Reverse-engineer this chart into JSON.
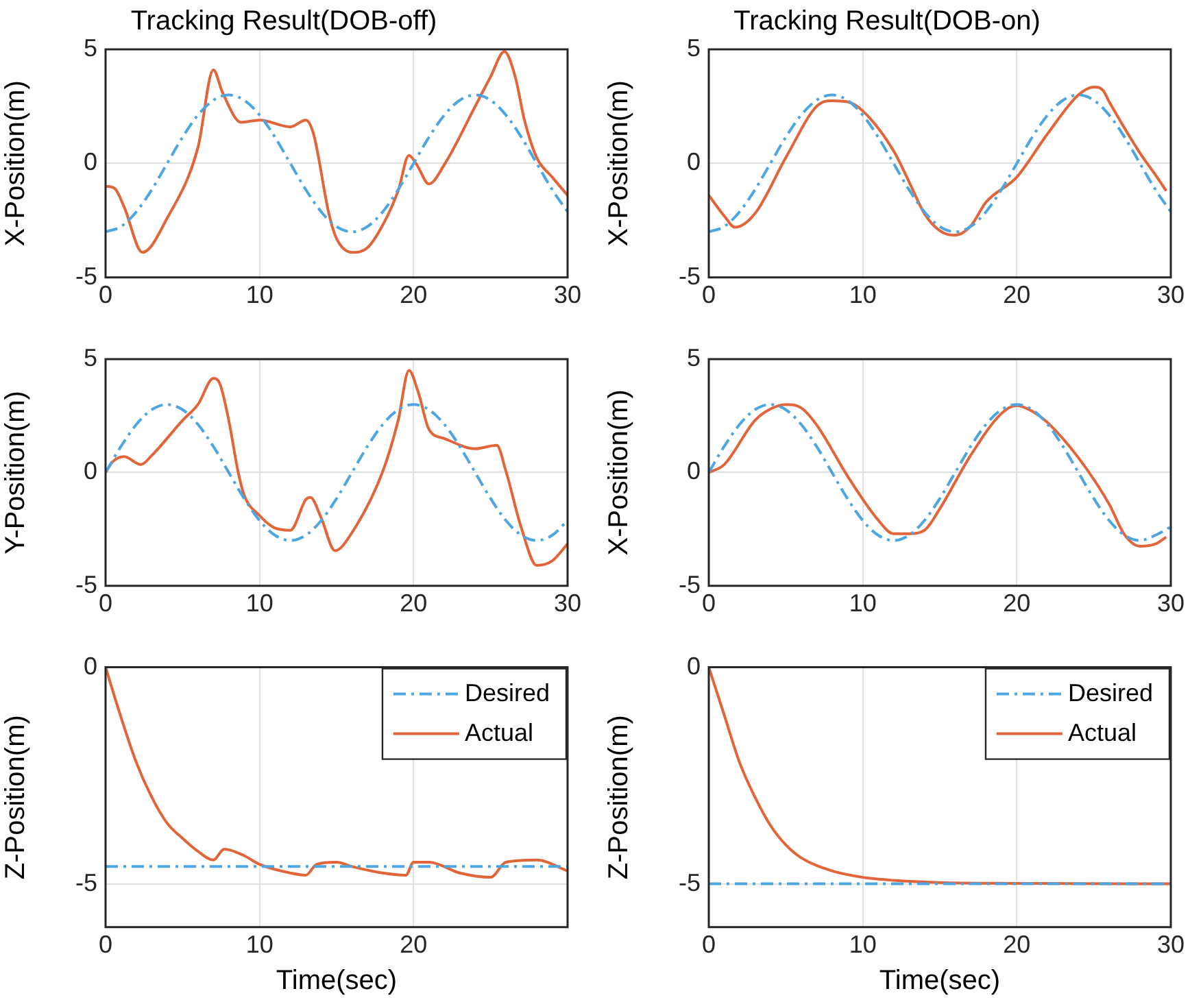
{
  "chart_data": [
    {
      "type": "line",
      "title": "Tracking Result(DOB-off)",
      "ylabel": "X-Position(m)",
      "xlim": [
        0,
        30
      ],
      "xticks": [
        0,
        10,
        20,
        30
      ],
      "ylim": [
        -5,
        5
      ],
      "yticks": [
        -5,
        0,
        5
      ],
      "grid": true,
      "legend": false,
      "series": [
        {
          "color": "#4da6e0",
          "line_style": "dashed",
          "x": [
            0,
            1,
            2,
            3,
            4,
            5,
            6,
            7,
            8,
            9,
            10,
            11,
            12,
            13,
            14,
            15,
            16,
            17,
            18,
            19,
            20,
            21,
            22,
            23,
            24,
            25,
            26,
            27,
            28,
            29,
            30
          ],
          "values": [
            -3,
            -2.77,
            -2.12,
            -1.15,
            0,
            1.15,
            2.12,
            2.77,
            3,
            2.77,
            2.12,
            1.15,
            0,
            -1.15,
            -2.12,
            -2.77,
            -3,
            -2.77,
            -2.12,
            -1.15,
            0,
            1.15,
            2.12,
            2.77,
            3,
            2.77,
            2.12,
            1.15,
            0,
            -1.15,
            -2.12
          ]
        },
        {
          "color": "#e2653a",
          "line_style": "solid",
          "x": [
            0,
            0.6,
            1.2,
            2.4,
            4,
            6,
            7,
            7.6,
            8.8,
            10,
            12,
            13,
            13.5,
            14.5,
            15,
            16,
            17,
            18,
            19,
            19.7,
            20.2,
            21,
            22,
            24,
            25,
            25.9,
            26.6,
            27.2,
            28,
            29,
            30
          ],
          "values": [
            -1,
            -1.1,
            -1.9,
            -3.9,
            -2.4,
            0.7,
            4.1,
            3.1,
            1.8,
            1.9,
            1.6,
            1.9,
            1.3,
            -2.2,
            -3.3,
            -3.9,
            -3.7,
            -2.7,
            -1.2,
            0.35,
            -0.05,
            -0.9,
            -0.05,
            2.5,
            3.8,
            4.9,
            3.8,
            1.9,
            0.25,
            -0.6,
            -1.4
          ]
        }
      ]
    },
    {
      "type": "line",
      "title": "Tracking Result(DOB-on)",
      "ylabel": "X-Position(m)",
      "xlim": [
        0,
        30
      ],
      "xticks": [
        0,
        10,
        20,
        30
      ],
      "ylim": [
        -5,
        5
      ],
      "yticks": [
        -5,
        0,
        5
      ],
      "grid": true,
      "legend": false,
      "series": [
        {
          "color": "#4da6e0",
          "line_style": "dashed",
          "x": [
            0,
            1,
            2,
            3,
            4,
            5,
            6,
            7,
            8,
            9,
            10,
            11,
            12,
            13,
            14,
            15,
            16,
            17,
            18,
            19,
            20,
            21,
            22,
            23,
            24,
            25,
            26,
            27,
            28,
            29,
            30
          ],
          "values": [
            -3,
            -2.77,
            -2.12,
            -1.15,
            0,
            1.15,
            2.12,
            2.77,
            3,
            2.77,
            2.12,
            1.15,
            0,
            -1.15,
            -2.12,
            -2.77,
            -3,
            -2.77,
            -2.12,
            -1.15,
            0,
            1.15,
            2.12,
            2.77,
            3,
            2.77,
            2.12,
            1.15,
            0,
            -1.15,
            -2.12
          ]
        },
        {
          "color": "#e2653a",
          "line_style": "solid",
          "x": [
            0,
            1,
            1.7,
            3,
            5,
            7,
            8,
            9,
            10,
            12,
            13,
            14,
            15,
            16,
            17,
            18,
            20,
            22,
            24,
            25,
            25.6,
            26,
            28,
            29,
            29.7
          ],
          "values": [
            -1.4,
            -2.3,
            -2.8,
            -2.2,
            0.25,
            2.5,
            2.75,
            2.7,
            2.3,
            0.55,
            -0.8,
            -2.2,
            -2.95,
            -3.15,
            -2.75,
            -1.7,
            -0.6,
            1.3,
            3,
            3.35,
            3.2,
            2.7,
            0.45,
            -0.5,
            -1.2
          ]
        }
      ]
    },
    {
      "type": "line",
      "ylabel": "Y-Position(m)",
      "xlim": [
        0,
        30
      ],
      "xticks": [
        0,
        10,
        20,
        30
      ],
      "ylim": [
        -5,
        5
      ],
      "yticks": [
        -5,
        0,
        5
      ],
      "grid": true,
      "legend": false,
      "series": [
        {
          "color": "#4da6e0",
          "line_style": "dashed",
          "x": [
            0,
            1,
            2,
            3,
            4,
            5,
            6,
            7,
            8,
            9,
            10,
            11,
            12,
            13,
            14,
            15,
            16,
            17,
            18,
            19,
            20,
            21,
            22,
            23,
            24,
            25,
            26,
            27,
            28,
            29,
            30
          ],
          "values": [
            0,
            1.15,
            2.12,
            2.77,
            3,
            2.77,
            2.12,
            1.15,
            0,
            -1.15,
            -2.12,
            -2.77,
            -3,
            -2.77,
            -2.12,
            -1.15,
            0,
            1.15,
            2.12,
            2.77,
            3,
            2.77,
            2.12,
            1.15,
            0,
            -1.15,
            -2.12,
            -2.77,
            -3,
            -2.77,
            -2.12
          ]
        },
        {
          "color": "#e2653a",
          "line_style": "solid",
          "x": [
            0,
            0.5,
            1.2,
            2.3,
            3,
            5,
            6,
            7,
            7.4,
            8,
            8.6,
            9,
            10,
            11,
            12,
            13,
            13.3,
            14,
            14.9,
            16,
            18,
            19,
            19.7,
            20.3,
            21,
            22,
            24,
            25.4,
            26,
            27,
            28,
            29,
            30
          ],
          "values": [
            0,
            0.5,
            0.7,
            0.35,
            0.75,
            2.3,
            3,
            4.15,
            3.95,
            2.3,
            0.05,
            -1,
            -1.9,
            -2.45,
            -2.55,
            -1.2,
            -1.1,
            -2,
            -3.45,
            -2.65,
            0.05,
            2.3,
            4.5,
            3.55,
            1.9,
            1.5,
            1.05,
            1.2,
            0.05,
            -2.45,
            -4.1,
            -3.9,
            -3.15
          ]
        }
      ]
    },
    {
      "type": "line",
      "ylabel": "X-Position(m)",
      "xlim": [
        0,
        30
      ],
      "xticks": [
        0,
        10,
        20,
        30
      ],
      "ylim": [
        -5,
        5
      ],
      "yticks": [
        -5,
        0,
        5
      ],
      "grid": true,
      "legend": false,
      "series": [
        {
          "color": "#4da6e0",
          "line_style": "dashed",
          "x": [
            0,
            1,
            2,
            3,
            4,
            5,
            6,
            7,
            8,
            9,
            10,
            11,
            12,
            13,
            14,
            15,
            16,
            17,
            18,
            19,
            20,
            21,
            22,
            23,
            24,
            25,
            26,
            27,
            28,
            29,
            30
          ],
          "values": [
            0,
            1.15,
            2.12,
            2.77,
            3,
            2.77,
            2.12,
            1.15,
            0,
            -1.15,
            -2.12,
            -2.77,
            -3,
            -2.77,
            -2.12,
            -1.15,
            0,
            1.15,
            2.12,
            2.77,
            3,
            2.77,
            2.12,
            1.15,
            0,
            -1.15,
            -2.12,
            -2.77,
            -3,
            -2.77,
            -2.4
          ]
        },
        {
          "color": "#e2653a",
          "line_style": "solid",
          "x": [
            0,
            1,
            3,
            4,
            5,
            6,
            7,
            9,
            11,
            12,
            13,
            14,
            15,
            17,
            19,
            20,
            21,
            22,
            24,
            26,
            27,
            28,
            29,
            29.7
          ],
          "values": [
            0,
            0.35,
            2.3,
            2.8,
            3,
            2.85,
            2.1,
            -0.15,
            -2.1,
            -2.7,
            -2.7,
            -2.55,
            -1.6,
            0.75,
            2.6,
            2.95,
            2.7,
            2.2,
            0.65,
            -1.4,
            -2.75,
            -3.25,
            -3.15,
            -2.85
          ]
        }
      ]
    },
    {
      "type": "line",
      "ylabel": "Z-Position(m)",
      "xlabel": "Time(sec)",
      "xlim": [
        0,
        30
      ],
      "xticks": [
        0,
        10,
        20
      ],
      "ylim": [
        -6,
        0
      ],
      "yticks": [
        -5,
        0
      ],
      "grid": true,
      "legend": "top right",
      "series": [
        {
          "name": "Desired",
          "color": "#4da6e0",
          "line_style": "dashed",
          "x": [
            0,
            30
          ],
          "values": [
            -4.6,
            -4.6
          ]
        },
        {
          "name": "Actual",
          "color": "#e2653a",
          "line_style": "solid",
          "x": [
            0,
            1,
            2,
            3,
            4,
            5,
            6,
            7,
            7.7,
            9,
            10,
            12,
            13,
            13.7,
            15,
            16,
            18,
            19.5,
            20,
            21,
            23,
            25,
            26,
            28,
            30
          ],
          "values": [
            0,
            -1.15,
            -2.2,
            -3,
            -3.6,
            -3.95,
            -4.25,
            -4.45,
            -4.2,
            -4.35,
            -4.55,
            -4.75,
            -4.8,
            -4.55,
            -4.5,
            -4.6,
            -4.75,
            -4.8,
            -4.5,
            -4.5,
            -4.75,
            -4.85,
            -4.5,
            -4.45,
            -4.7
          ]
        }
      ]
    },
    {
      "type": "line",
      "ylabel": "Z-Position(m)",
      "xlabel": "Time(sec)",
      "xlim": [
        0,
        30
      ],
      "xticks": [
        0,
        10,
        20,
        30
      ],
      "ylim": [
        -6,
        0
      ],
      "yticks": [
        -5,
        0
      ],
      "grid": true,
      "legend": "top right",
      "series": [
        {
          "name": "Desired",
          "color": "#4da6e0",
          "line_style": "dashed",
          "x": [
            0,
            30
          ],
          "values": [
            -5,
            -5
          ]
        },
        {
          "name": "Actual",
          "color": "#e2653a",
          "line_style": "solid",
          "x": [
            0,
            1,
            2,
            3,
            4,
            5,
            6,
            8,
            10,
            12,
            15,
            20,
            30
          ],
          "values": [
            0,
            -1.1,
            -2.2,
            -3,
            -3.65,
            -4.1,
            -4.4,
            -4.7,
            -4.85,
            -4.92,
            -4.97,
            -4.99,
            -5
          ]
        }
      ]
    }
  ]
}
